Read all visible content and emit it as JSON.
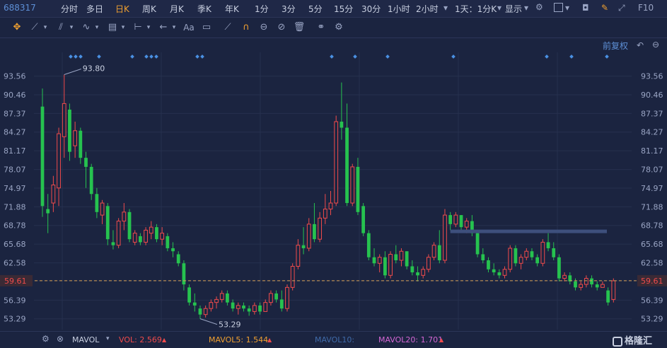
{
  "header": {
    "code": "688317",
    "periods": [
      "分时",
      "多日",
      "日K",
      "周K",
      "月K",
      "季K",
      "年K",
      "1分",
      "3分",
      "5分",
      "15分",
      "30分",
      "1小时",
      "2小时"
    ],
    "active_period": "日K",
    "interval_select": "1天：1分K",
    "display_label": "显示",
    "f10_label": "F10"
  },
  "toolbar": {
    "icons": [
      "move-icon",
      "line-icon",
      "channel-icon",
      "wave-icon",
      "fib-icon",
      "measure-icon",
      "arrow-icon",
      "text-icon",
      "comment-icon",
      "ruler-icon",
      "magnet-icon",
      "lock-icon",
      "hide-icon",
      "trash-icon",
      "link-icon",
      "settings-icon"
    ],
    "text_tool_label": "Aa"
  },
  "adjust_label": "前复权",
  "chart_data": {
    "type": "candlestick",
    "ylim": [
      51.5,
      97.5
    ],
    "y_ticks": [
      "93.56",
      "90.46",
      "87.37",
      "84.27",
      "81.17",
      "78.07",
      "74.97",
      "71.88",
      "68.78",
      "65.68",
      "62.58",
      "59.61",
      "56.39",
      "53.29"
    ],
    "current_price": "59.61",
    "high_marker": "93.80",
    "low_marker": "53.29",
    "ohlc": [
      [
        88.5,
        91.5,
        70.2,
        72.0
      ],
      [
        71.5,
        74.0,
        67.5,
        70.8
      ],
      [
        72.5,
        77.0,
        71.0,
        75.5
      ],
      [
        75.0,
        85.0,
        72.0,
        84.0
      ],
      [
        83.5,
        93.8,
        80.0,
        89.0
      ],
      [
        88.0,
        89.0,
        79.5,
        81.0
      ],
      [
        82.0,
        86.0,
        80.0,
        84.5
      ],
      [
        84.5,
        85.0,
        79.0,
        80.0
      ],
      [
        80.0,
        81.0,
        75.0,
        78.5
      ],
      [
        78.5,
        79.0,
        73.0,
        74.0
      ],
      [
        74.0,
        75.0,
        70.0,
        71.0
      ],
      [
        70.5,
        73.0,
        69.0,
        72.5
      ],
      [
        72.0,
        72.5,
        65.5,
        66.5
      ],
      [
        66.0,
        68.0,
        64.8,
        65.5
      ],
      [
        65.5,
        70.0,
        65.0,
        69.5
      ],
      [
        69.5,
        72.5,
        68.0,
        71.0
      ],
      [
        71.0,
        71.5,
        66.0,
        66.5
      ],
      [
        66.0,
        68.0,
        65.5,
        67.5
      ],
      [
        67.0,
        67.5,
        65.5,
        66.0
      ],
      [
        66.0,
        68.5,
        65.5,
        68.0
      ],
      [
        67.5,
        69.5,
        66.5,
        68.5
      ],
      [
        68.5,
        69.0,
        66.0,
        66.5
      ],
      [
        66.5,
        68.5,
        65.5,
        67.5
      ],
      [
        67.0,
        67.5,
        64.5,
        65.0
      ],
      [
        65.0,
        66.0,
        63.5,
        64.5
      ],
      [
        64.0,
        64.5,
        62.0,
        62.5
      ],
      [
        62.5,
        63.0,
        58.0,
        59.0
      ],
      [
        58.5,
        59.0,
        55.5,
        56.0
      ],
      [
        56.0,
        57.5,
        54.5,
        55.5
      ],
      [
        55.0,
        55.5,
        53.3,
        54.0
      ],
      [
        54.0,
        55.5,
        53.5,
        55.0
      ],
      [
        55.0,
        56.5,
        54.5,
        56.0
      ],
      [
        56.0,
        57.0,
        55.0,
        56.5
      ],
      [
        56.5,
        58.0,
        56.0,
        57.5
      ],
      [
        57.5,
        58.0,
        55.5,
        56.0
      ],
      [
        56.0,
        56.5,
        54.5,
        55.0
      ],
      [
        55.0,
        56.0,
        54.0,
        55.5
      ],
      [
        55.5,
        56.0,
        54.5,
        55.0
      ],
      [
        55.0,
        55.5,
        53.8,
        54.5
      ],
      [
        54.5,
        56.0,
        54.0,
        55.5
      ],
      [
        55.5,
        56.0,
        54.0,
        54.5
      ],
      [
        54.5,
        56.5,
        54.5,
        56.0
      ],
      [
        56.0,
        58.0,
        55.5,
        57.5
      ],
      [
        57.5,
        58.0,
        56.0,
        56.5
      ],
      [
        56.5,
        58.0,
        54.5,
        55.0
      ],
      [
        55.0,
        59.0,
        54.5,
        58.5
      ],
      [
        58.5,
        62.5,
        58.0,
        62.0
      ],
      [
        62.0,
        66.5,
        61.5,
        65.5
      ],
      [
        65.5,
        68.5,
        64.0,
        65.0
      ],
      [
        65.0,
        70.0,
        64.5,
        69.0
      ],
      [
        69.0,
        72.5,
        66.0,
        66.5
      ],
      [
        66.5,
        71.0,
        66.0,
        70.0
      ],
      [
        70.0,
        74.0,
        69.0,
        71.5
      ],
      [
        71.5,
        74.5,
        70.5,
        72.5
      ],
      [
        72.5,
        87.0,
        72.0,
        86.0
      ],
      [
        86.0,
        92.5,
        83.0,
        85.0
      ],
      [
        85.0,
        89.0,
        72.0,
        72.5
      ],
      [
        72.5,
        79.0,
        72.0,
        78.5
      ],
      [
        78.5,
        80.0,
        70.5,
        71.0
      ],
      [
        72.0,
        72.5,
        67.0,
        67.5
      ],
      [
        67.5,
        68.0,
        63.0,
        63.5
      ],
      [
        63.5,
        65.0,
        62.0,
        62.5
      ],
      [
        62.5,
        64.0,
        61.0,
        63.5
      ],
      [
        63.5,
        64.5,
        60.0,
        60.5
      ],
      [
        60.5,
        64.5,
        60.0,
        64.0
      ],
      [
        64.0,
        65.5,
        62.5,
        63.0
      ],
      [
        63.0,
        65.0,
        62.0,
        64.5
      ],
      [
        64.5,
        64.5,
        61.5,
        62.0
      ],
      [
        62.0,
        63.0,
        60.5,
        61.0
      ],
      [
        61.0,
        62.0,
        59.5,
        60.5
      ],
      [
        60.5,
        62.0,
        60.0,
        61.5
      ],
      [
        61.5,
        64.0,
        61.0,
        63.5
      ],
      [
        63.5,
        66.0,
        63.0,
        65.5
      ],
      [
        65.5,
        68.0,
        62.5,
        63.0
      ],
      [
        63.0,
        71.5,
        62.5,
        70.5
      ],
      [
        70.5,
        71.0,
        68.0,
        69.0
      ],
      [
        69.0,
        71.0,
        68.5,
        70.5
      ],
      [
        70.5,
        70.5,
        68.0,
        68.5
      ],
      [
        68.5,
        70.0,
        67.5,
        69.5
      ],
      [
        69.5,
        70.5,
        67.0,
        67.5
      ],
      [
        67.5,
        68.0,
        63.5,
        64.0
      ],
      [
        64.0,
        65.0,
        62.5,
        63.0
      ],
      [
        63.0,
        63.5,
        61.0,
        61.5
      ],
      [
        61.5,
        62.5,
        60.5,
        61.0
      ],
      [
        61.0,
        61.5,
        60.0,
        60.5
      ],
      [
        60.5,
        62.0,
        60.0,
        61.5
      ],
      [
        61.5,
        65.5,
        61.0,
        65.0
      ],
      [
        65.0,
        65.5,
        62.0,
        62.5
      ],
      [
        62.5,
        64.0,
        61.5,
        63.5
      ],
      [
        63.5,
        65.0,
        63.0,
        64.5
      ],
      [
        64.5,
        65.0,
        63.0,
        63.5
      ],
      [
        63.5,
        64.0,
        62.0,
        62.5
      ],
      [
        62.5,
        66.5,
        62.0,
        66.0
      ],
      [
        66.0,
        67.5,
        64.5,
        65.0
      ],
      [
        65.0,
        66.0,
        63.0,
        63.5
      ],
      [
        63.5,
        64.0,
        59.5,
        60.0
      ],
      [
        60.0,
        61.0,
        59.5,
        60.5
      ],
      [
        60.5,
        61.0,
        59.0,
        59.5
      ],
      [
        59.5,
        60.0,
        58.0,
        58.5
      ],
      [
        58.5,
        59.5,
        58.0,
        59.0
      ],
      [
        59.0,
        60.5,
        58.5,
        60.0
      ],
      [
        60.0,
        60.5,
        58.5,
        59.0
      ],
      [
        59.0,
        59.5,
        58.0,
        58.5
      ],
      [
        58.5,
        59.5,
        58.5,
        59.0
      ],
      [
        58.0,
        58.5,
        55.5,
        56.0
      ],
      [
        56.5,
        60.0,
        56.0,
        59.6
      ]
    ],
    "trend_line": {
      "label": "",
      "price": 67.8
    }
  },
  "indicator": {
    "name": "MAVOL",
    "vol": "VOL: 2.569",
    "ma5": "MAVOL5: 1.544",
    "ma10": "MAVOL10:",
    "ma20": "MAVOL20: 1.701"
  },
  "watermark": "格隆汇",
  "colors": {
    "up": "#f04b4b",
    "down": "#26c24f",
    "background": "#1b2440",
    "grid": "#26304e",
    "accent": "#f0a030",
    "link": "#5d8fd6",
    "vol": "#f04b4b",
    "ma5": "#f0a030",
    "ma10": "#3f6aa8",
    "ma20": "#d467d4"
  }
}
